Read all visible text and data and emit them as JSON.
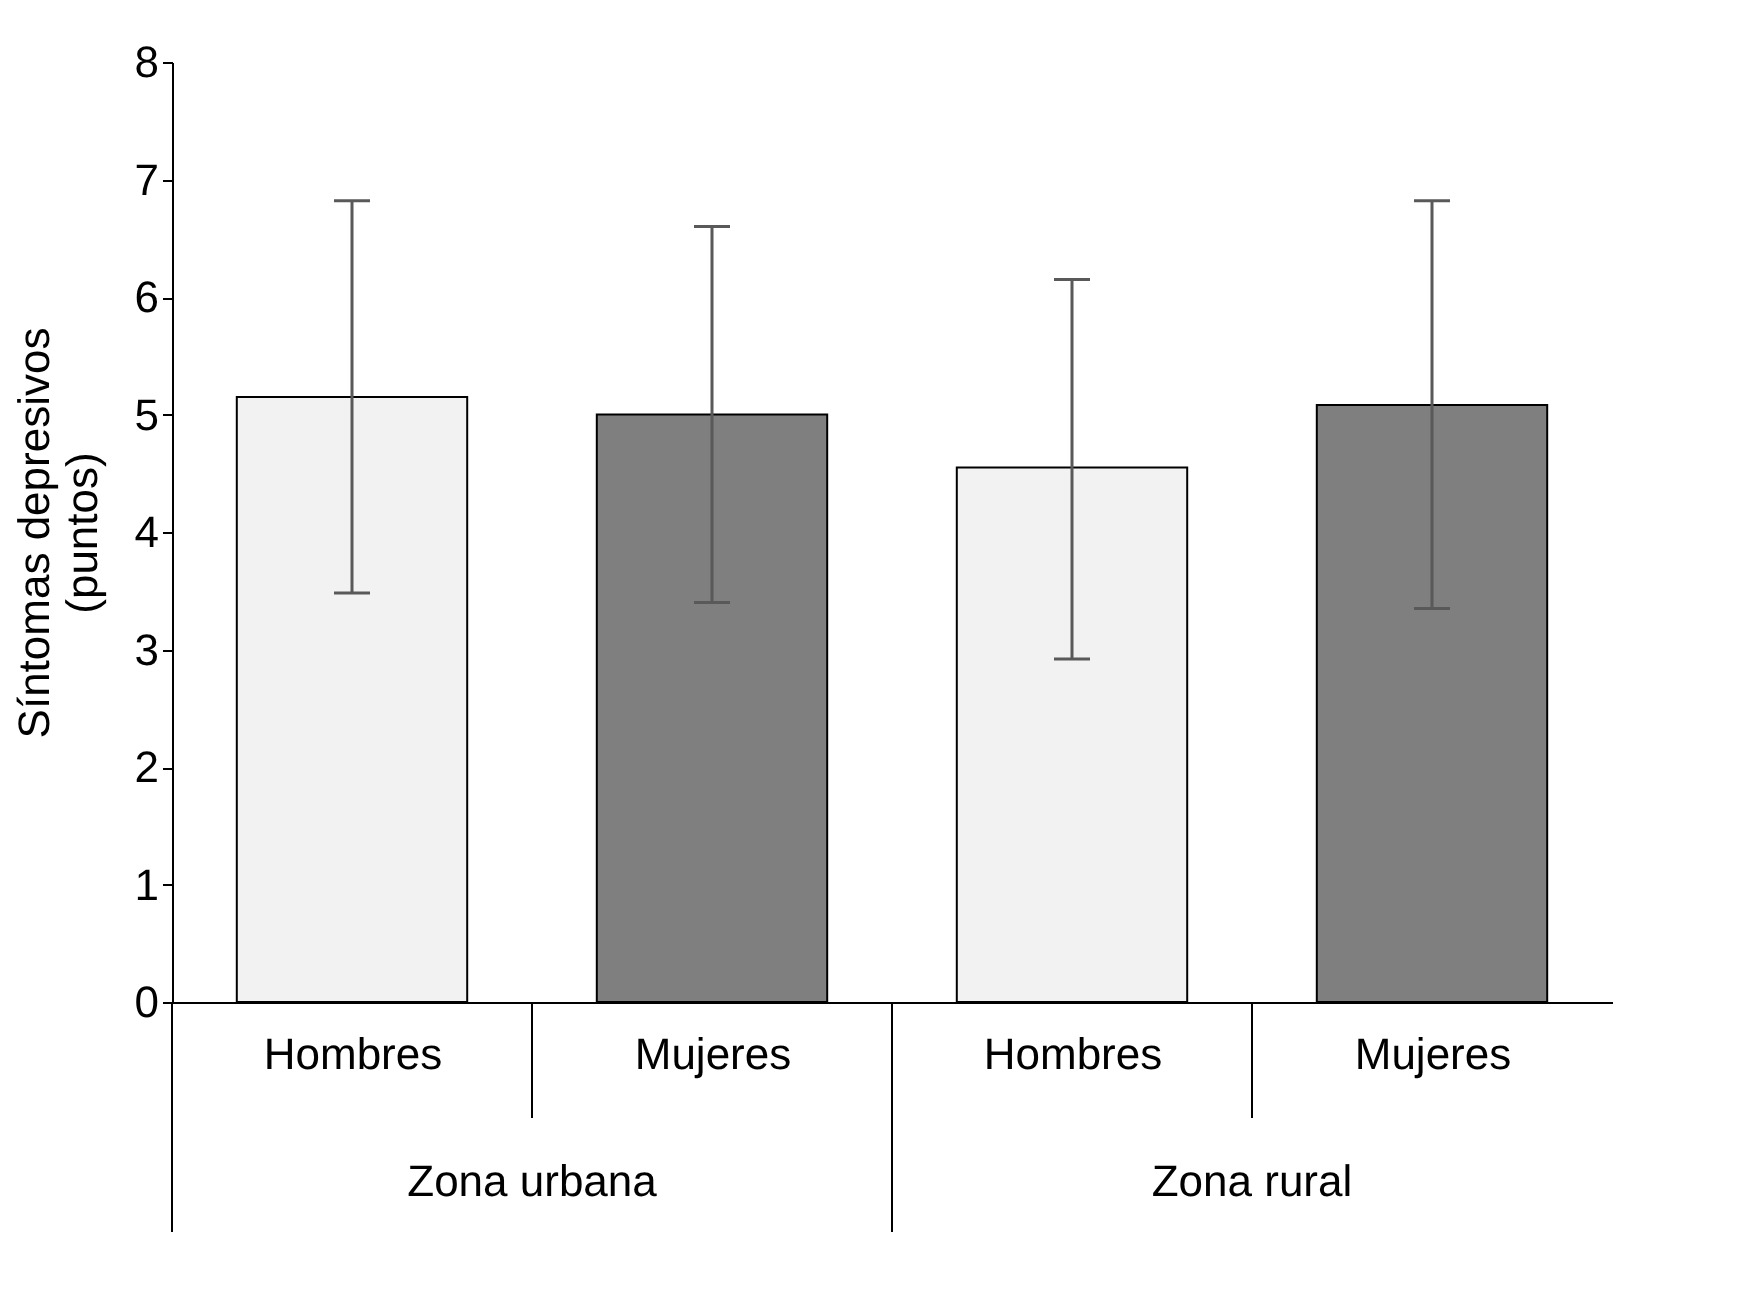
{
  "chart_data": {
    "type": "bar",
    "ylabel": "Síntomas depresivos\n(puntos)",
    "categories": [
      "Hombres",
      "Mujeres",
      "Hombres",
      "Mujeres"
    ],
    "values": [
      5.15,
      5.0,
      4.55,
      5.08
    ],
    "colors": [
      "#f2f2f2",
      "#7f7f7f",
      "#f2f2f2",
      "#7f7f7f"
    ],
    "errors": [
      [
        3.48,
        6.82
      ],
      [
        3.4,
        6.6
      ],
      [
        2.92,
        6.15
      ],
      [
        3.35,
        6.82
      ]
    ],
    "ylim": [
      0,
      8
    ],
    "yticks": [
      0,
      1,
      2,
      3,
      4,
      5,
      6,
      7,
      8
    ],
    "grid": false,
    "annotations": [
      "Zona urbana",
      "Zona rural"
    ]
  }
}
